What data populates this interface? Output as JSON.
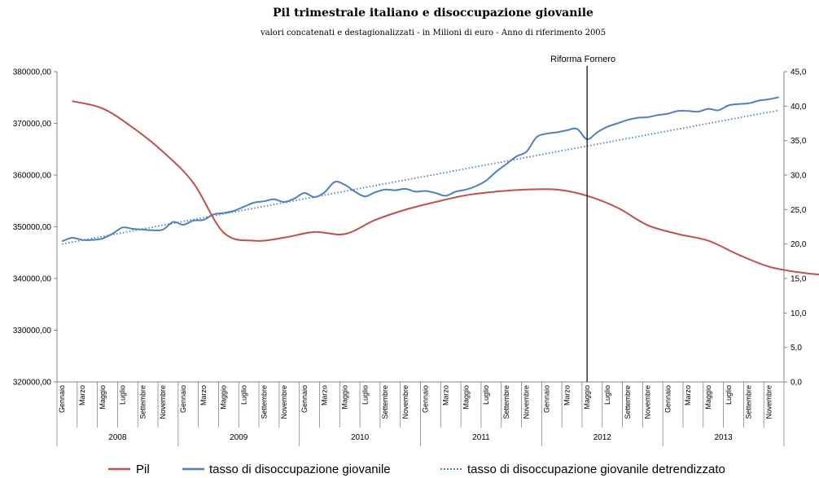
{
  "chart_data": {
    "type": "line",
    "title": "Pil trimestrale italiano e disoccupazione giovanile",
    "subtitle": "valori concatenati e destagionalizzati - in Milioni di euro - Anno di riferimento 2005",
    "annotation": "Riforma Fornero",
    "annotation_category_index": 52,
    "months_shown": [
      "Gennaio",
      "Marzo",
      "Maggio",
      "Luglio",
      "Settembre",
      "Novembre"
    ],
    "years": [
      "2008",
      "2009",
      "2010",
      "2011",
      "2012",
      "2013"
    ],
    "n_months": 72,
    "y_left": {
      "ylim": [
        320000,
        380000
      ],
      "ticks": [
        "320000,00",
        "330000,00",
        "340000,00",
        "350000,00",
        "360000,00",
        "370000,00",
        "380000,00"
      ],
      "tick_values": [
        320000,
        330000,
        340000,
        350000,
        360000,
        370000,
        380000
      ]
    },
    "y_right": {
      "ylim": [
        0,
        45
      ],
      "ticks": [
        "0,0",
        "5,0",
        "10,0",
        "15,0",
        "20,0",
        "25,0",
        "30,0",
        "35,0",
        "40,0",
        "45,0"
      ],
      "tick_values": [
        0,
        5,
        10,
        15,
        20,
        25,
        30,
        35,
        40,
        45
      ]
    },
    "series": [
      {
        "name": "Pil",
        "axis": "left",
        "color": "#C0504D",
        "style": "solid",
        "points": [
          [
            1,
            374300
          ],
          [
            4,
            372900
          ],
          [
            7,
            369200
          ],
          [
            10,
            364500
          ],
          [
            13,
            358500
          ],
          [
            16,
            348900
          ],
          [
            19,
            347300
          ],
          [
            22,
            347900
          ],
          [
            25,
            349000
          ],
          [
            28,
            348600
          ],
          [
            31,
            351300
          ],
          [
            34,
            353300
          ],
          [
            37,
            354800
          ],
          [
            40,
            356100
          ],
          [
            43,
            356800
          ],
          [
            46,
            357200
          ],
          [
            49,
            357200
          ],
          [
            52,
            356000
          ],
          [
            55,
            353700
          ],
          [
            58,
            350300
          ],
          [
            61,
            348600
          ],
          [
            64,
            347300
          ],
          [
            67,
            344600
          ],
          [
            70,
            342300
          ],
          [
            73,
            341200
          ],
          [
            76,
            340600
          ],
          [
            79,
            340400
          ]
        ]
      },
      {
        "name": "tasso di disoccupazione giovanile",
        "axis": "right",
        "color": "#4F81BD",
        "style": "solid",
        "values": [
          20.4,
          20.9,
          20.6,
          20.6,
          20.8,
          21.5,
          22.4,
          22.2,
          22.1,
          22.0,
          22.1,
          23.2,
          22.8,
          23.4,
          23.5,
          24.3,
          24.5,
          24.8,
          25.4,
          26.0,
          26.2,
          26.5,
          26.1,
          26.6,
          27.4,
          26.8,
          27.5,
          29.0,
          28.6,
          27.6,
          26.9,
          27.5,
          27.9,
          27.8,
          28.0,
          27.6,
          27.7,
          27.4,
          27.0,
          27.6,
          27.9,
          28.4,
          29.2,
          30.5,
          31.6,
          32.7,
          33.4,
          35.5,
          36.0,
          36.2,
          36.5,
          36.7,
          35.2,
          36.2,
          37.0,
          37.5,
          38.0,
          38.3,
          38.4,
          38.7,
          38.9,
          39.3,
          39.3,
          39.2,
          39.6,
          39.4,
          40.1,
          40.3,
          40.4,
          40.8,
          41.0,
          41.3
        ]
      },
      {
        "name": "tasso di disoccupazione giovanile detrendizzato",
        "axis": "right",
        "color": "#4F81BD",
        "style": "dotted",
        "start": 20.0,
        "end": 39.4
      }
    ],
    "legend_position": "bottom"
  }
}
